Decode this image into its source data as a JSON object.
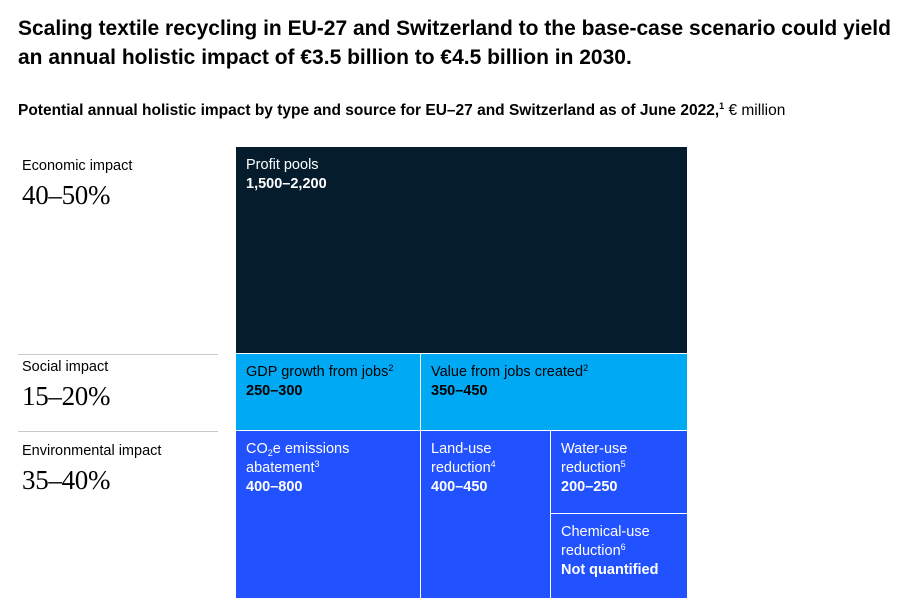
{
  "headline": "Scaling textile recycling in EU-27 and Switzerland to the base-case scenario could yield an annual holistic impact of €3.5 billion to €4.5 billion in 2030.",
  "subtitle": {
    "text": "Potential annual holistic impact by type and source for EU–27 and Switzerland as of June 2022,",
    "footnote": "1",
    "unit": " € million"
  },
  "chart_data": {
    "type": "treemap",
    "title": "Potential annual holistic impact by type and source for EU–27 and Switzerland as of June 2022",
    "unit": "€ million",
    "categories": [
      {
        "label": "Economic impact",
        "share": "40–50%",
        "items": [
          {
            "label": "Profit pools",
            "footnote": "",
            "value": "1,500–2,200",
            "range": [
              1500,
              2200
            ]
          }
        ]
      },
      {
        "label": "Social impact",
        "share": "15–20%",
        "items": [
          {
            "label": "GDP growth from jobs",
            "footnote": "2",
            "value": "250–300",
            "range": [
              250,
              300
            ]
          },
          {
            "label": "Value from jobs created",
            "footnote": "2",
            "value": "350–450",
            "range": [
              350,
              450
            ]
          }
        ]
      },
      {
        "label": "Environmental impact",
        "share": "35–40%",
        "items": [
          {
            "label_pre": "CO",
            "label_sub": "2",
            "label_post": "e emissions abatement",
            "footnote": "3",
            "value": "400–800",
            "range": [
              400,
              800
            ]
          },
          {
            "label": "Land-use reduction",
            "footnote": "4",
            "value": "400–450",
            "range": [
              400,
              450
            ]
          },
          {
            "label": "Water-use reduction",
            "footnote": "5",
            "value": "200–250",
            "range": [
              200,
              250
            ]
          },
          {
            "label": "Chemical-use reduction",
            "footnote": "6",
            "value": "Not quantified",
            "range": null
          }
        ]
      }
    ],
    "colors": {
      "economic": "#051c2c",
      "social": "#00a9f4",
      "environmental": "#2251ff"
    }
  }
}
